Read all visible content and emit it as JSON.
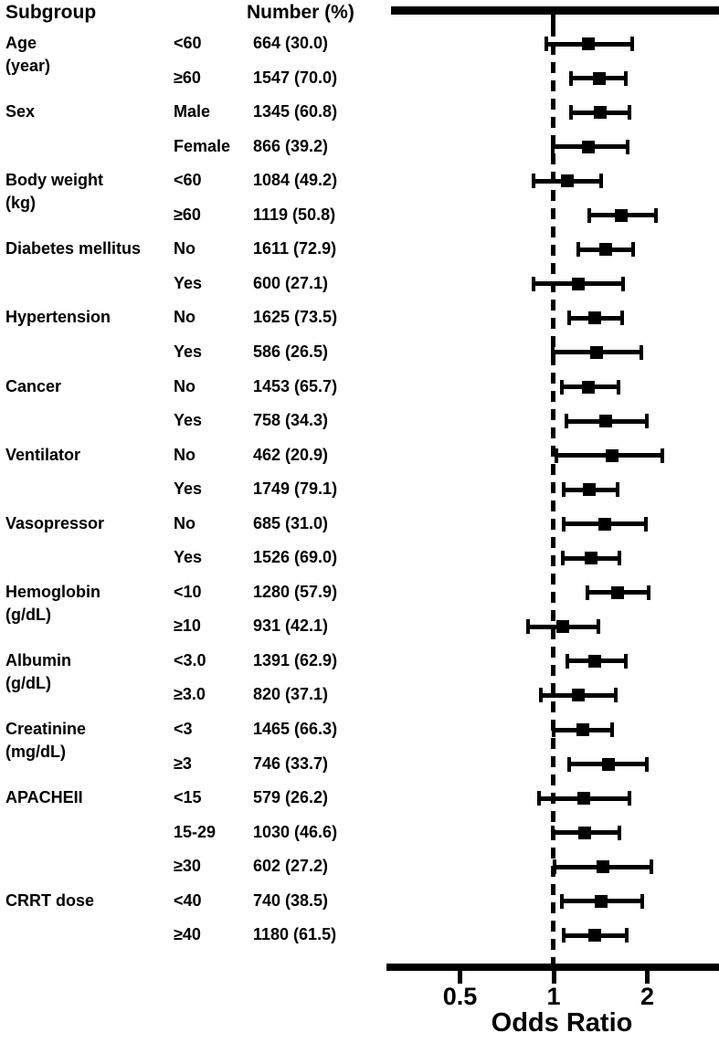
{
  "figure": {
    "col_header_subgroup": "Subgroup",
    "col_header_number": "Number (%)"
  },
  "chart_data": {
    "type": "forest",
    "scale": "log",
    "title": "",
    "xlabel": "Odds Ratio",
    "axis_ticks": [
      "0.5",
      "1",
      "2"
    ],
    "axis_tick_values": [
      0.5,
      1,
      2
    ],
    "reference_line": 1,
    "xlim": [
      0.33,
      3.4
    ],
    "columns": [
      "Subgroup",
      "Category",
      "Number (%)",
      "OR",
      "CI_low",
      "CI_high"
    ],
    "rows": [
      {
        "subgroup_lines": [
          "Age",
          "(year)"
        ],
        "category": "<60",
        "number": "664 (30.0)",
        "or": 1.29,
        "lo": 0.95,
        "hi": 1.79
      },
      {
        "subgroup_lines": [],
        "category": "≥60",
        "number": "1547 (70.0)",
        "or": 1.4,
        "lo": 1.14,
        "hi": 1.71
      },
      {
        "subgroup_lines": [
          "Sex"
        ],
        "category": "Male",
        "number": "1345 (60.8)",
        "or": 1.41,
        "lo": 1.14,
        "hi": 1.75
      },
      {
        "subgroup_lines": [],
        "category": "Female",
        "number": "866 (39.2)",
        "or": 1.29,
        "lo": 0.99,
        "hi": 1.73
      },
      {
        "subgroup_lines": [
          "Body weight",
          "(kg)"
        ],
        "category": "<60",
        "number": "1084 (49.2)",
        "or": 1.11,
        "lo": 0.86,
        "hi": 1.42
      },
      {
        "subgroup_lines": [],
        "category": "≥60",
        "number": "1119 (50.8)",
        "or": 1.65,
        "lo": 1.3,
        "hi": 2.13
      },
      {
        "subgroup_lines": [
          "Diabetes mellitus"
        ],
        "category": "No",
        "number": "1611 (72.9)",
        "or": 1.47,
        "lo": 1.2,
        "hi": 1.8
      },
      {
        "subgroup_lines": [],
        "category": "Yes",
        "number": "600 (27.1)",
        "or": 1.2,
        "lo": 0.86,
        "hi": 1.67
      },
      {
        "subgroup_lines": [
          "Hypertension"
        ],
        "category": "No",
        "number": "1625 (73.5)",
        "or": 1.36,
        "lo": 1.12,
        "hi": 1.66
      },
      {
        "subgroup_lines": [],
        "category": "Yes",
        "number": "586 (26.5)",
        "or": 1.37,
        "lo": 0.99,
        "hi": 1.91
      },
      {
        "subgroup_lines": [
          "Cancer"
        ],
        "category": "No",
        "number": "1453 (65.7)",
        "or": 1.29,
        "lo": 1.06,
        "hi": 1.62
      },
      {
        "subgroup_lines": [],
        "category": "Yes",
        "number": "758 (34.3)",
        "or": 1.47,
        "lo": 1.1,
        "hi": 1.99
      },
      {
        "subgroup_lines": [
          "Ventilator"
        ],
        "category": "No",
        "number": "462 (20.9)",
        "or": 1.54,
        "lo": 1.02,
        "hi": 2.24
      },
      {
        "subgroup_lines": [],
        "category": "Yes",
        "number": "1749 (79.1)",
        "or": 1.3,
        "lo": 1.08,
        "hi": 1.61
      },
      {
        "subgroup_lines": [
          "Vasopressor"
        ],
        "category": "No",
        "number": "685 (31.0)",
        "or": 1.46,
        "lo": 1.08,
        "hi": 1.98
      },
      {
        "subgroup_lines": [],
        "category": "Yes",
        "number": "1526 (69.0)",
        "or": 1.32,
        "lo": 1.07,
        "hi": 1.63
      },
      {
        "subgroup_lines": [
          "Hemoglobin",
          "(g/dL)"
        ],
        "category": "<10",
        "number": "1280 (57.9)",
        "or": 1.6,
        "lo": 1.28,
        "hi": 2.02
      },
      {
        "subgroup_lines": [],
        "category": "≥10",
        "number": "931 (42.1)",
        "or": 1.07,
        "lo": 0.83,
        "hi": 1.39
      },
      {
        "subgroup_lines": [
          "Albumin",
          "(g/dL)"
        ],
        "category": "<3.0",
        "number": "1391 (62.9)",
        "or": 1.36,
        "lo": 1.11,
        "hi": 1.71
      },
      {
        "subgroup_lines": [],
        "category": "≥3.0",
        "number": "820 (37.1)",
        "or": 1.2,
        "lo": 0.91,
        "hi": 1.58
      },
      {
        "subgroup_lines": [
          "Creatinine",
          "(mg/dL)"
        ],
        "category": "<3",
        "number": "1465 (66.3)",
        "or": 1.24,
        "lo": 1.0,
        "hi": 1.54
      },
      {
        "subgroup_lines": [],
        "category": "≥3",
        "number": "746 (33.7)",
        "or": 1.5,
        "lo": 1.12,
        "hi": 1.99
      },
      {
        "subgroup_lines": [
          "APACHEII"
        ],
        "category": "<15",
        "number": "579 (26.2)",
        "or": 1.25,
        "lo": 0.9,
        "hi": 1.75
      },
      {
        "subgroup_lines": [],
        "category": "15-29",
        "number": "1030 (46.6)",
        "or": 1.26,
        "lo": 0.99,
        "hi": 1.63
      },
      {
        "subgroup_lines": [],
        "category": "≥30",
        "number": "602 (27.2)",
        "or": 1.44,
        "lo": 1.01,
        "hi": 2.06
      },
      {
        "subgroup_lines": [
          "CRRT dose"
        ],
        "category": "<40",
        "number": "740 (38.5)",
        "or": 1.42,
        "lo": 1.06,
        "hi": 1.93
      },
      {
        "subgroup_lines": [],
        "category": "≥40",
        "number": "1180 (61.5)",
        "or": 1.36,
        "lo": 1.08,
        "hi": 1.72
      }
    ],
    "colors": {
      "foreground": "#000000",
      "background": "#ffffff"
    }
  }
}
